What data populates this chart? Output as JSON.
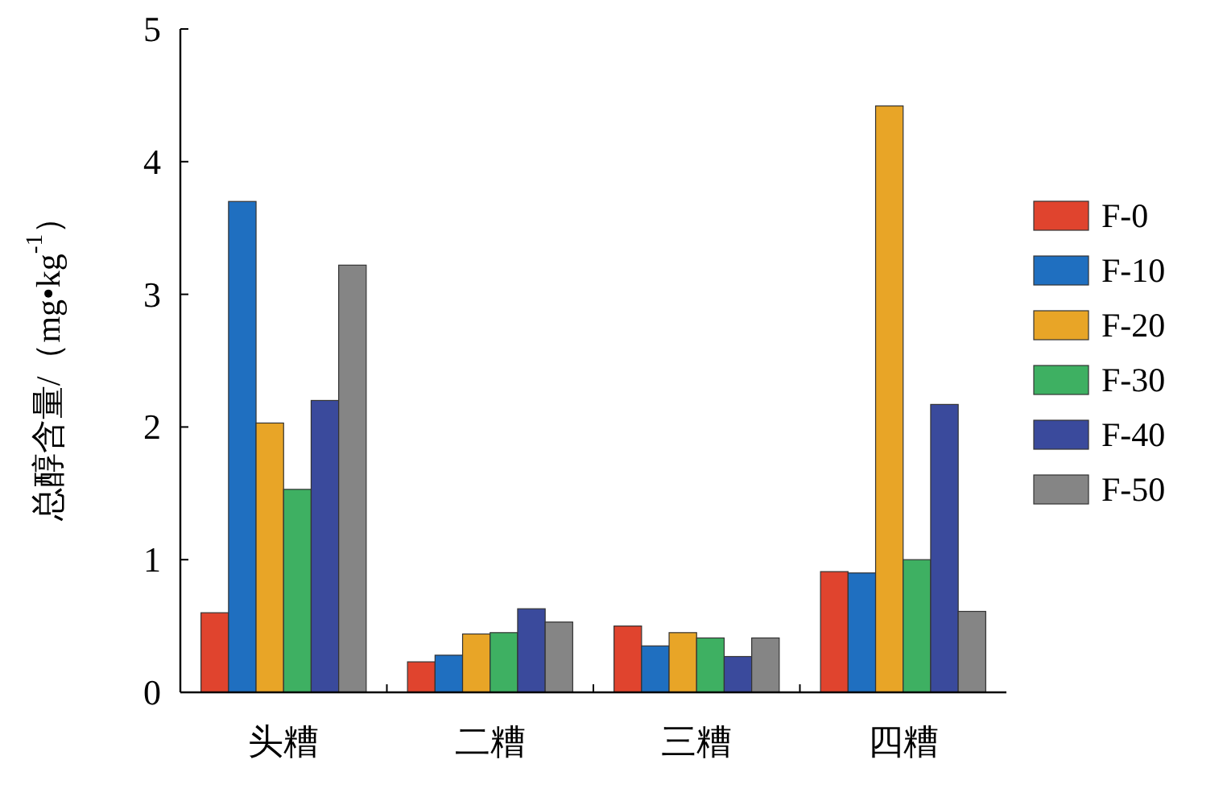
{
  "chart_data": {
    "type": "bar",
    "ylabel": "总醇含量/（mg•kg$^{-1}$）",
    "categories": [
      "头糟",
      "二糟",
      "三糟",
      "四糟"
    ],
    "ylim": [
      0,
      5
    ],
    "yticks": [
      0,
      1,
      2,
      3,
      4,
      5
    ],
    "legend": "right",
    "grid": false,
    "series": [
      {
        "name": "F-0",
        "color": "#e0442e",
        "values": [
          0.6,
          0.23,
          0.5,
          0.91
        ]
      },
      {
        "name": "F-10",
        "color": "#1f6fc0",
        "values": [
          3.7,
          0.28,
          0.35,
          0.9
        ]
      },
      {
        "name": "F-20",
        "color": "#e8a527",
        "values": [
          2.03,
          0.44,
          0.45,
          4.42
        ]
      },
      {
        "name": "F-30",
        "color": "#3eb062",
        "values": [
          1.53,
          0.45,
          0.41,
          1.0
        ]
      },
      {
        "name": "F-40",
        "color": "#3a4a9c",
        "values": [
          2.2,
          0.63,
          0.27,
          2.17
        ]
      },
      {
        "name": "F-50",
        "color": "#858585",
        "values": [
          3.22,
          0.53,
          0.41,
          0.61
        ]
      }
    ]
  }
}
